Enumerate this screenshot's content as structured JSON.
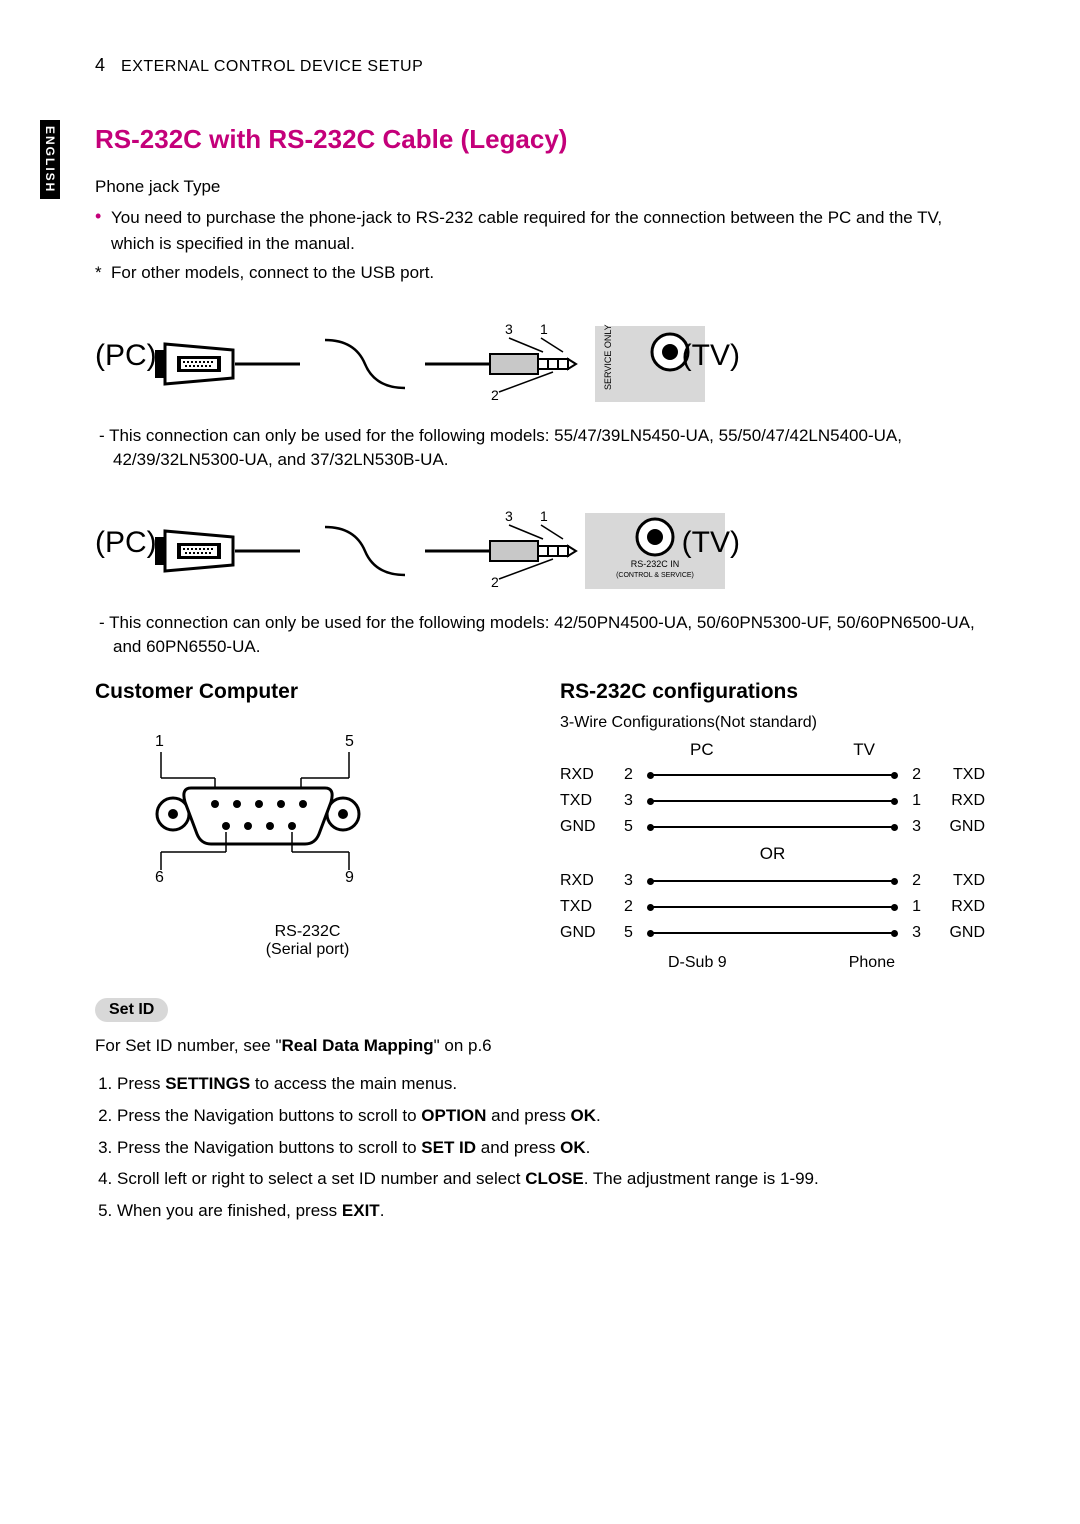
{
  "page_number": "4",
  "header": "EXTERNAL CONTROL DEVICE SETUP",
  "language_tab": "ENGLISH",
  "section_title": "RS-232C with RS-232C Cable (Legacy)",
  "subtype": "Phone jack Type",
  "intro_bullets": [
    "You need to purchase the phone-jack to RS-232 cable required for the connection between the PC and the TV, which is specified in the manual.",
    "For other models, connect to the USB port."
  ],
  "diagram1": {
    "pc_label": "(PC)",
    "tv_label": "(TV)",
    "pin_labels": [
      "1",
      "2",
      "3"
    ],
    "port_label": "SERVICE ONLY"
  },
  "diagram1_note": "- This connection can only be used for the following models: 55/47/39LN5450-UA, 55/50/47/42LN5400-UA, 42/39/32LN5300-UA, and 37/32LN530B-UA.",
  "diagram2": {
    "pc_label": "(PC)",
    "tv_label": "(TV)",
    "pin_labels": [
      "1",
      "2",
      "3"
    ],
    "port_label_top": "RS-232C IN",
    "port_label_bottom": "(CONTROL & SERVICE)"
  },
  "diagram2_note": "- This connection can only be used for the following models: 42/50PN4500-UA, 50/60PN5300-UF, 50/60PN6500-UA, and 60PN6550-UA.",
  "left_col_title": "Customer Computer",
  "serial_labels": {
    "top_left": "1",
    "top_right": "5",
    "bot_left": "6",
    "bot_right": "9"
  },
  "serial_caption_1": "RS-232C",
  "serial_caption_2": "(Serial port)",
  "right_col_title": "RS-232C configurations",
  "config_subnote": "3-Wire Configurations(Not standard)",
  "pin_header_left": "PC",
  "pin_header_right": "TV",
  "pin_rows_a": [
    {
      "ll": "RXD",
      "ln": "2",
      "rn": "2",
      "rl": "TXD"
    },
    {
      "ll": "TXD",
      "ln": "3",
      "rn": "1",
      "rl": "RXD"
    },
    {
      "ll": "GND",
      "ln": "5",
      "rn": "3",
      "rl": "GND"
    }
  ],
  "or_label": "OR",
  "pin_rows_b": [
    {
      "ll": "RXD",
      "ln": "3",
      "rn": "2",
      "rl": "TXD"
    },
    {
      "ll": "TXD",
      "ln": "2",
      "rn": "1",
      "rl": "RXD"
    },
    {
      "ll": "GND",
      "ln": "5",
      "rn": "3",
      "rl": "GND"
    }
  ],
  "pin_footer_left": "D-Sub 9",
  "pin_footer_right": "Phone",
  "setid_badge": "Set ID",
  "setid_intro_pre": "For Set ID number, see \"",
  "setid_intro_bold": "Real Data Mapping",
  "setid_intro_post": "\" on p.6",
  "steps": [
    {
      "pre": "Press ",
      "b": "SETTINGS",
      "post": " to access the main menus."
    },
    {
      "pre": "Press the Navigation buttons to scroll to ",
      "b": "OPTION",
      "post": " and press ",
      "b2": "OK",
      "post2": "."
    },
    {
      "pre": "Press the Navigation buttons to scroll to ",
      "b": "SET ID",
      "post": " and press ",
      "b2": "OK",
      "post2": "."
    },
    {
      "pre": "Scroll left or right to select a set ID number and select ",
      "b": "CLOSE",
      "post": ". The adjustment range is 1-99."
    },
    {
      "pre": "When you are finished, press ",
      "b": "EXIT",
      "post": "."
    }
  ],
  "colors": {
    "accent": "#c4007a"
  }
}
